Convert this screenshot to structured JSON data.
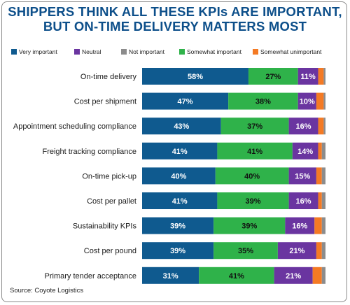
{
  "title_lines": [
    "SHIPPERS THINK ALL THESE KPIs ARE IMPORTANT,",
    "BUT ON-TIME DELIVERY MATTERS MOST"
  ],
  "source": "Source: Coyote Logistics",
  "legend": [
    {
      "label": "Very important",
      "color": "#0f5a8f"
    },
    {
      "label": "Neutral",
      "color": "#6a35a0"
    },
    {
      "label": "Not important",
      "color": "#8c8c8c"
    },
    {
      "label": "Somewhat important",
      "color": "#2fb24a"
    },
    {
      "label": "Somewhat unimportant",
      "color": "#f47a24"
    }
  ],
  "chart_data": {
    "type": "bar",
    "orientation": "horizontal",
    "stacked": true,
    "categories": [
      "On-time delivery",
      "Cost per shipment",
      "Appointment scheduling compliance",
      "Freight tracking compliance",
      "On-time pick-up",
      "Cost per pallet",
      "Sustainability KPIs",
      "Cost per pound",
      "Primary tender acceptance"
    ],
    "series": [
      {
        "name": "Very important",
        "color": "#0f5a8f",
        "label_color": "#ffffff",
        "values": [
          58,
          47,
          43,
          41,
          40,
          41,
          39,
          39,
          31
        ]
      },
      {
        "name": "Somewhat important",
        "color": "#2fb24a",
        "label_color": "#111111",
        "values": [
          27,
          38,
          37,
          41,
          40,
          39,
          39,
          35,
          41
        ]
      },
      {
        "name": "Neutral",
        "color": "#6a35a0",
        "label_color": "#ffffff",
        "values": [
          11,
          10,
          16,
          14,
          15,
          16,
          16,
          21,
          21
        ]
      },
      {
        "name": "Somewhat unimportant",
        "color": "#f47a24",
        "label_color": "#ffffff",
        "values": [
          3,
          4,
          3,
          2,
          3,
          2,
          4,
          3,
          5
        ]
      },
      {
        "name": "Not important",
        "color": "#8c8c8c",
        "label_color": "#ffffff",
        "values": [
          1,
          1,
          1,
          2,
          2,
          2,
          2,
          2,
          2
        ]
      }
    ],
    "value_suffix": "%",
    "xlim": [
      0,
      100
    ],
    "grid": false,
    "legend_position": "top"
  }
}
